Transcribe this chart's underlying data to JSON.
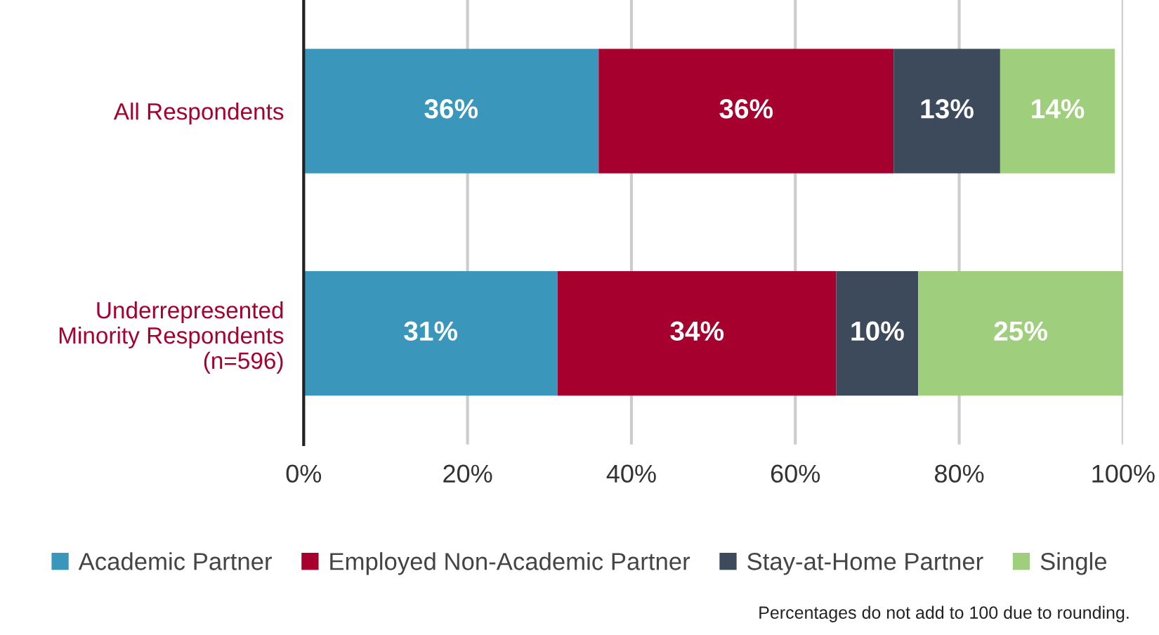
{
  "chart_data": {
    "type": "bar",
    "orientation": "horizontal",
    "stacked": true,
    "categories": [
      "All Respondents",
      "Underrepresented\nMinority Respondents\n(n=596)"
    ],
    "series": [
      {
        "name": "Academic Partner",
        "color": "#3a97bb",
        "values": [
          36,
          31
        ],
        "value_labels": [
          "36%",
          "31%"
        ]
      },
      {
        "name": "Employed Non-Academic Partner",
        "color": "#a6002f",
        "values": [
          36,
          34
        ],
        "value_labels": [
          "36%",
          "34%"
        ]
      },
      {
        "name": "Stay-at-Home Partner",
        "color": "#3d4a5c",
        "values": [
          13,
          10
        ],
        "value_labels": [
          "13%",
          "10%"
        ]
      },
      {
        "name": "Single",
        "color": "#9fcf7c",
        "values": [
          14,
          25
        ],
        "value_labels": [
          "14%",
          "25%"
        ]
      }
    ],
    "xlim": [
      0,
      100
    ],
    "xticks": [
      {
        "value": 0,
        "label": "0%"
      },
      {
        "value": 20,
        "label": "20%"
      },
      {
        "value": 40,
        "label": "40%"
      },
      {
        "value": 60,
        "label": "60%"
      },
      {
        "value": 80,
        "label": "80%"
      },
      {
        "value": 100,
        "label": "100%"
      }
    ],
    "grid": "x",
    "legend": "bottom",
    "annotations": [
      "Percentages do not add to 100 due to rounding."
    ]
  }
}
